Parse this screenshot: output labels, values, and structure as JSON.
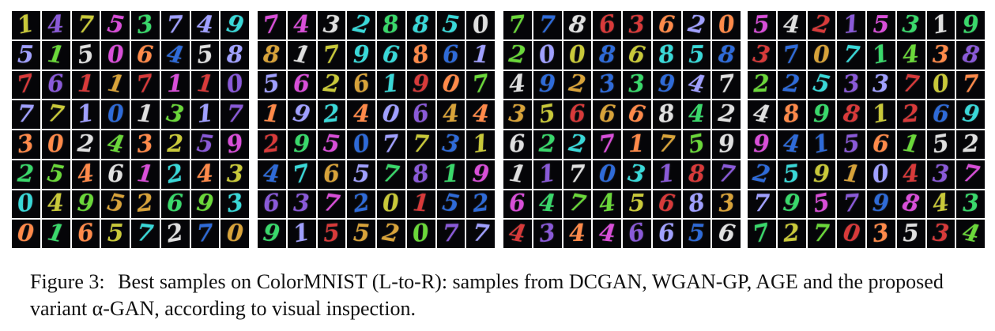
{
  "figure": {
    "panels": [
      {
        "name": "DCGAN",
        "rows": [
          [
            "1",
            "4",
            "7",
            "5",
            "3",
            "7",
            "4",
            "9"
          ],
          [
            "5",
            "1",
            "5",
            "0",
            "6",
            "4",
            "5",
            "8"
          ],
          [
            "7",
            "6",
            "1",
            "1",
            "7",
            "1",
            "1",
            "0"
          ],
          [
            "7",
            "7",
            "1",
            "0",
            "1",
            "3",
            "1",
            "7"
          ],
          [
            "3",
            "0",
            "2",
            "4",
            "3",
            "2",
            "5",
            "9"
          ],
          [
            "2",
            "5",
            "4",
            "6",
            "1",
            "2",
            "4",
            "3"
          ],
          [
            "0",
            "4",
            "9",
            "5",
            "2",
            "6",
            "9",
            "3"
          ],
          [
            "0",
            "1",
            "6",
            "5",
            "7",
            "2",
            "7",
            "0"
          ]
        ]
      },
      {
        "name": "WGAN-GP",
        "rows": [
          [
            "7",
            "4",
            "3",
            "2",
            "8",
            "8",
            "5",
            "0"
          ],
          [
            "8",
            "1",
            "7",
            "9",
            "6",
            "8",
            "6",
            "1"
          ],
          [
            "5",
            "6",
            "2",
            "6",
            "1",
            "9",
            "0",
            "7"
          ],
          [
            "1",
            "9",
            "2",
            "4",
            "0",
            "6",
            "4",
            "4"
          ],
          [
            "2",
            "9",
            "5",
            "0",
            "7",
            "7",
            "3",
            "1"
          ],
          [
            "4",
            "7",
            "6",
            "5",
            "7",
            "8",
            "1",
            "9"
          ],
          [
            "6",
            "3",
            "7",
            "2",
            "0",
            "1",
            "5",
            "2"
          ],
          [
            "9",
            "1",
            "5",
            "5",
            "2",
            "0",
            "7",
            "7"
          ]
        ]
      },
      {
        "name": "AGE",
        "rows": [
          [
            "7",
            "7",
            "8",
            "6",
            "3",
            "6",
            "2",
            "0"
          ],
          [
            "2",
            "0",
            "0",
            "8",
            "6",
            "8",
            "5",
            "8"
          ],
          [
            "4",
            "9",
            "2",
            "3",
            "3",
            "9",
            "4",
            "7"
          ],
          [
            "3",
            "5",
            "6",
            "6",
            "6",
            "8",
            "4",
            "2"
          ],
          [
            "6",
            "2",
            "2",
            "7",
            "1",
            "7",
            "5",
            "9"
          ],
          [
            "1",
            "1",
            "7",
            "0",
            "3",
            "1",
            "8",
            "7"
          ],
          [
            "6",
            "4",
            "7",
            "4",
            "5",
            "6",
            "8",
            "3"
          ],
          [
            "4",
            "3",
            "4",
            "4",
            "6",
            "6",
            "5",
            "6"
          ]
        ]
      },
      {
        "name": "alpha-GAN",
        "rows": [
          [
            "5",
            "4",
            "2",
            "1",
            "5",
            "3",
            "1",
            "9"
          ],
          [
            "3",
            "7",
            "0",
            "7",
            "1",
            "4",
            "3",
            "8"
          ],
          [
            "2",
            "2",
            "5",
            "3",
            "3",
            "7",
            "0",
            "7"
          ],
          [
            "4",
            "8",
            "9",
            "8",
            "1",
            "2",
            "6",
            "9"
          ],
          [
            "9",
            "4",
            "1",
            "5",
            "6",
            "1",
            "5",
            "2"
          ],
          [
            "2",
            "5",
            "9",
            "1",
            "0",
            "4",
            "3",
            "7"
          ],
          [
            "7",
            "9",
            "5",
            "7",
            "9",
            "8",
            "4",
            "3"
          ],
          [
            "7",
            "2",
            "7",
            "0",
            "3",
            "5",
            "3",
            "4"
          ]
        ]
      }
    ],
    "palette": [
      "#2f6bd8",
      "#c9c93a",
      "#d84fd8",
      "#3ad86b",
      "#e0e0e0",
      "#d83a3a",
      "#3ad8d8",
      "#8a5ad8",
      "#d8a33a",
      "#6bd83a",
      "#a0a0ff",
      "#ff8a4a"
    ]
  },
  "caption": {
    "label": "Figure 3:",
    "text": "Best samples on ColorMNIST (L-to-R): samples from DCGAN, WGAN-GP, AGE and the proposed variant α-GAN, according to visual inspection."
  }
}
